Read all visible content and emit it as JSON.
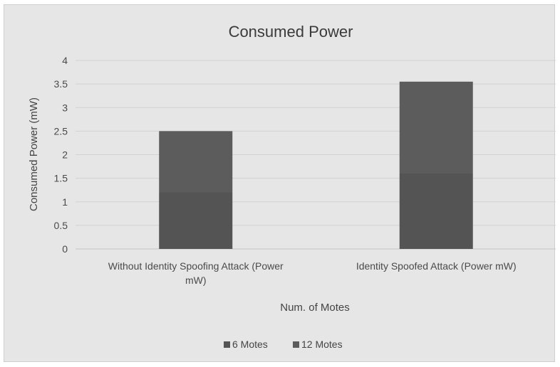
{
  "chart_data": {
    "type": "bar",
    "stacked": true,
    "title": "Consumed Power",
    "xlabel": "Num. of Motes",
    "ylabel": "Consumed Power (mW)",
    "ylim": [
      0,
      4
    ],
    "yticks": [
      "0",
      "0.5",
      "1",
      "1.5",
      "2",
      "2.5",
      "3",
      "3.5",
      "4"
    ],
    "categories": [
      [
        "Without Identity Spoofing Attack (Power",
        "mW)"
      ],
      [
        "Identity Spoofed Attack (Power mW)"
      ]
    ],
    "series": [
      {
        "name": "6 Motes",
        "values": [
          1.2,
          1.6
        ],
        "color": "#545454"
      },
      {
        "name": "12 Motes",
        "values": [
          1.3,
          1.95
        ],
        "color": "#5c5c5c"
      }
    ],
    "grid": true,
    "legend": "bottom"
  }
}
